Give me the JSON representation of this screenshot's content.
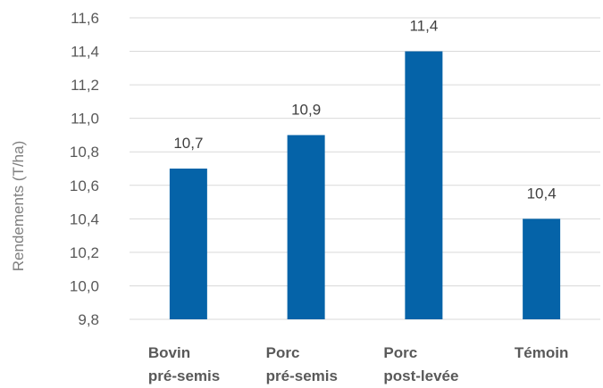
{
  "chart_data": {
    "type": "bar",
    "categories": [
      [
        "Bovin",
        "pré-semis"
      ],
      [
        "Porc",
        "pré-semis"
      ],
      [
        "Porc",
        "post-levée"
      ],
      [
        "Témoin"
      ]
    ],
    "values": [
      10.7,
      10.9,
      11.4,
      10.4
    ],
    "value_labels": [
      "10,7",
      "10,9",
      "11,4",
      "10,4"
    ],
    "ylabel": "Rendements (T/ha)",
    "xlabel": "",
    "title": "",
    "ylim": [
      9.8,
      11.6
    ],
    "yticks": [
      "9,8",
      "10,0",
      "10,2",
      "10,4",
      "10,6",
      "10,8",
      "11,0",
      "11,2",
      "11,4",
      "11,6"
    ],
    "grid": true,
    "legend": "none",
    "bar_color": "#0563a8",
    "grid_color": "#d9d9d9"
  }
}
